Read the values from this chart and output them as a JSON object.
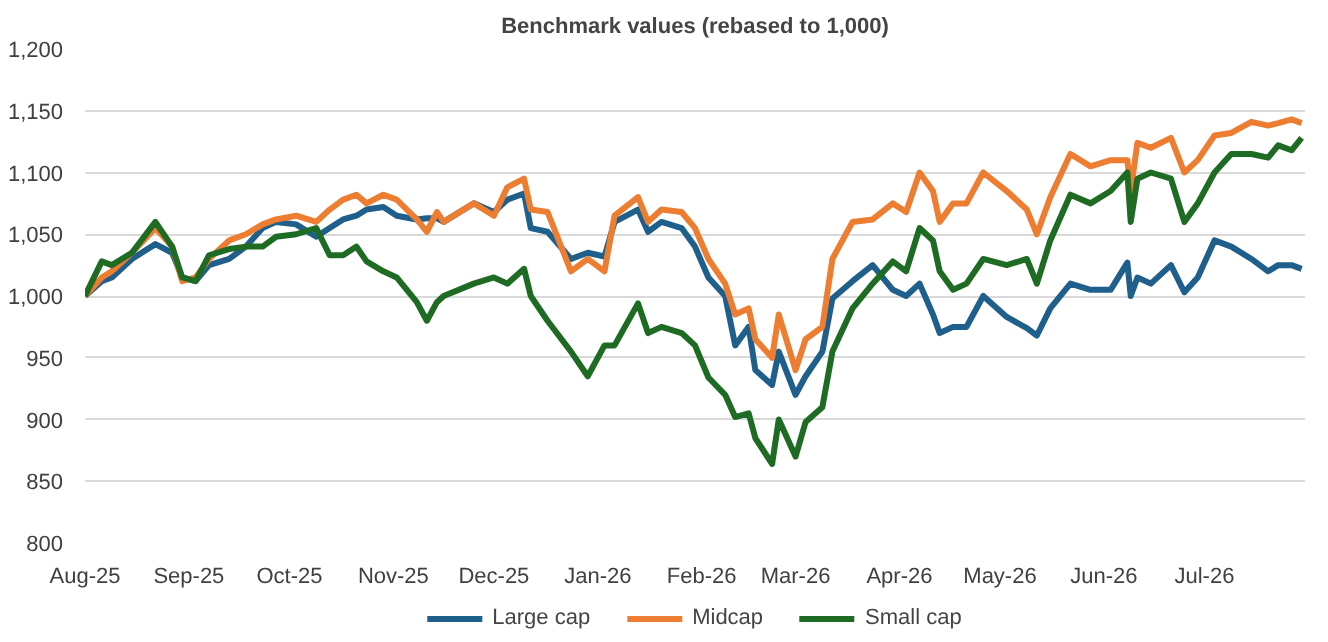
{
  "chart_data": {
    "type": "line",
    "title": "Benchmark values (rebased to 1,000)",
    "x": [
      "2025-08-01",
      "2025-08-06",
      "2025-08-09",
      "2025-08-15",
      "2025-08-22",
      "2025-08-27",
      "2025-08-30",
      "2025-09-03",
      "2025-09-07",
      "2025-09-13",
      "2025-09-18",
      "2025-09-23",
      "2025-09-27",
      "2025-10-03",
      "2025-10-09",
      "2025-10-13",
      "2025-10-17",
      "2025-10-21",
      "2025-10-24",
      "2025-10-29",
      "2025-11-02",
      "2025-11-08",
      "2025-11-11",
      "2025-11-14",
      "2025-11-16",
      "2025-11-25",
      "2025-12-01",
      "2025-12-05",
      "2025-12-10",
      "2025-12-12",
      "2025-12-17",
      "2025-12-24",
      "2025-12-29",
      "2026-01-03",
      "2026-01-06",
      "2026-01-13",
      "2026-01-16",
      "2026-01-20",
      "2026-01-26",
      "2026-01-30",
      "2026-02-03",
      "2026-02-08",
      "2026-02-11",
      "2026-02-15",
      "2026-02-17",
      "2026-02-22",
      "2026-02-24",
      "2026-03-01",
      "2026-03-04",
      "2026-03-09",
      "2026-03-12",
      "2026-03-18",
      "2026-03-24",
      "2026-03-30",
      "2026-04-03",
      "2026-04-07",
      "2026-04-11",
      "2026-04-13",
      "2026-04-17",
      "2026-04-21",
      "2026-04-26",
      "2026-05-03",
      "2026-05-09",
      "2026-05-12",
      "2026-05-16",
      "2026-05-22",
      "2026-05-28",
      "2026-06-03",
      "2026-06-08",
      "2026-06-09",
      "2026-06-11",
      "2026-06-15",
      "2026-06-21",
      "2026-06-25",
      "2026-06-29",
      "2026-07-04",
      "2026-07-09",
      "2026-07-15",
      "2026-07-20",
      "2026-07-23",
      "2026-07-27",
      "2026-07-30"
    ],
    "series": [
      {
        "name": "Large cap",
        "color": "#1f5f8b",
        "values": [
          1000,
          1012,
          1015,
          1030,
          1042,
          1035,
          1015,
          1012,
          1025,
          1030,
          1040,
          1055,
          1060,
          1058,
          1048,
          1055,
          1062,
          1065,
          1070,
          1072,
          1065,
          1062,
          1063,
          1063,
          1060,
          1075,
          1068,
          1078,
          1083,
          1055,
          1052,
          1030,
          1035,
          1032,
          1060,
          1070,
          1052,
          1060,
          1055,
          1040,
          1015,
          1000,
          960,
          975,
          940,
          928,
          955,
          920,
          935,
          955,
          998,
          1012,
          1025,
          1005,
          1000,
          1010,
          985,
          970,
          975,
          975,
          1000,
          983,
          974,
          968,
          990,
          1010,
          1005,
          1005,
          1027,
          1000,
          1015,
          1010,
          1025,
          1003,
          1015,
          1045,
          1040,
          1030,
          1020,
          1025,
          1025,
          1022
        ]
      },
      {
        "name": "Midcap",
        "color": "#ed7d31",
        "values": [
          1000,
          1015,
          1020,
          1035,
          1055,
          1040,
          1012,
          1015,
          1030,
          1045,
          1050,
          1058,
          1062,
          1065,
          1060,
          1070,
          1078,
          1082,
          1075,
          1082,
          1078,
          1062,
          1052,
          1068,
          1060,
          1075,
          1065,
          1088,
          1095,
          1070,
          1068,
          1020,
          1030,
          1020,
          1065,
          1080,
          1060,
          1070,
          1068,
          1055,
          1030,
          1010,
          985,
          990,
          965,
          950,
          985,
          940,
          965,
          975,
          1030,
          1060,
          1062,
          1075,
          1068,
          1100,
          1085,
          1060,
          1075,
          1075,
          1100,
          1085,
          1070,
          1050,
          1080,
          1115,
          1105,
          1110,
          1110,
          1085,
          1124,
          1120,
          1128,
          1100,
          1110,
          1130,
          1132,
          1141,
          1138,
          1140,
          1143,
          1140
        ]
      },
      {
        "name": "Small cap",
        "color": "#1e6b24",
        "values": [
          1000,
          1028,
          1025,
          1035,
          1060,
          1040,
          1015,
          1012,
          1033,
          1038,
          1040,
          1040,
          1048,
          1050,
          1055,
          1033,
          1033,
          1040,
          1028,
          1020,
          1015,
          995,
          980,
          995,
          1000,
          1010,
          1015,
          1010,
          1022,
          1000,
          980,
          955,
          935,
          960,
          960,
          994,
          970,
          975,
          970,
          960,
          934,
          920,
          902,
          905,
          885,
          864,
          900,
          870,
          898,
          910,
          955,
          990,
          1010,
          1028,
          1020,
          1055,
          1045,
          1020,
          1005,
          1010,
          1030,
          1025,
          1030,
          1010,
          1045,
          1082,
          1075,
          1085,
          1100,
          1060,
          1095,
          1100,
          1095,
          1060,
          1075,
          1100,
          1115,
          1115,
          1112,
          1122,
          1118,
          1128
        ]
      }
    ],
    "xlim": [
      "2025-08-01",
      "2026-07-31"
    ],
    "xticks": [
      {
        "value": "2025-08-01",
        "label": "Aug-25"
      },
      {
        "value": "2025-09-01",
        "label": "Sep-25"
      },
      {
        "value": "2025-10-01",
        "label": "Oct-25"
      },
      {
        "value": "2025-11-01",
        "label": "Nov-25"
      },
      {
        "value": "2025-12-01",
        "label": "Dec-25"
      },
      {
        "value": "2026-01-01",
        "label": "Jan-26"
      },
      {
        "value": "2026-02-01",
        "label": "Feb-26"
      },
      {
        "value": "2026-03-01",
        "label": "Mar-26"
      },
      {
        "value": "2026-04-01",
        "label": "Apr-26"
      },
      {
        "value": "2026-05-01",
        "label": "May-26"
      },
      {
        "value": "2026-06-01",
        "label": "Jun-26"
      },
      {
        "value": "2026-07-01",
        "label": "Jul-26"
      }
    ],
    "ylim": [
      800,
      1200
    ],
    "yticks": [
      {
        "value": 800,
        "label": "800"
      },
      {
        "value": 850,
        "label": "850"
      },
      {
        "value": 900,
        "label": "900"
      },
      {
        "value": 950,
        "label": "950"
      },
      {
        "value": 1000,
        "label": "1,000"
      },
      {
        "value": 1050,
        "label": "1,050"
      },
      {
        "value": 1100,
        "label": "1,100"
      },
      {
        "value": 1150,
        "label": "1,150"
      },
      {
        "value": 1200,
        "label": "1,200"
      }
    ],
    "grid": "y",
    "legend": "bottom",
    "marker": "none",
    "line_style": "solid"
  }
}
